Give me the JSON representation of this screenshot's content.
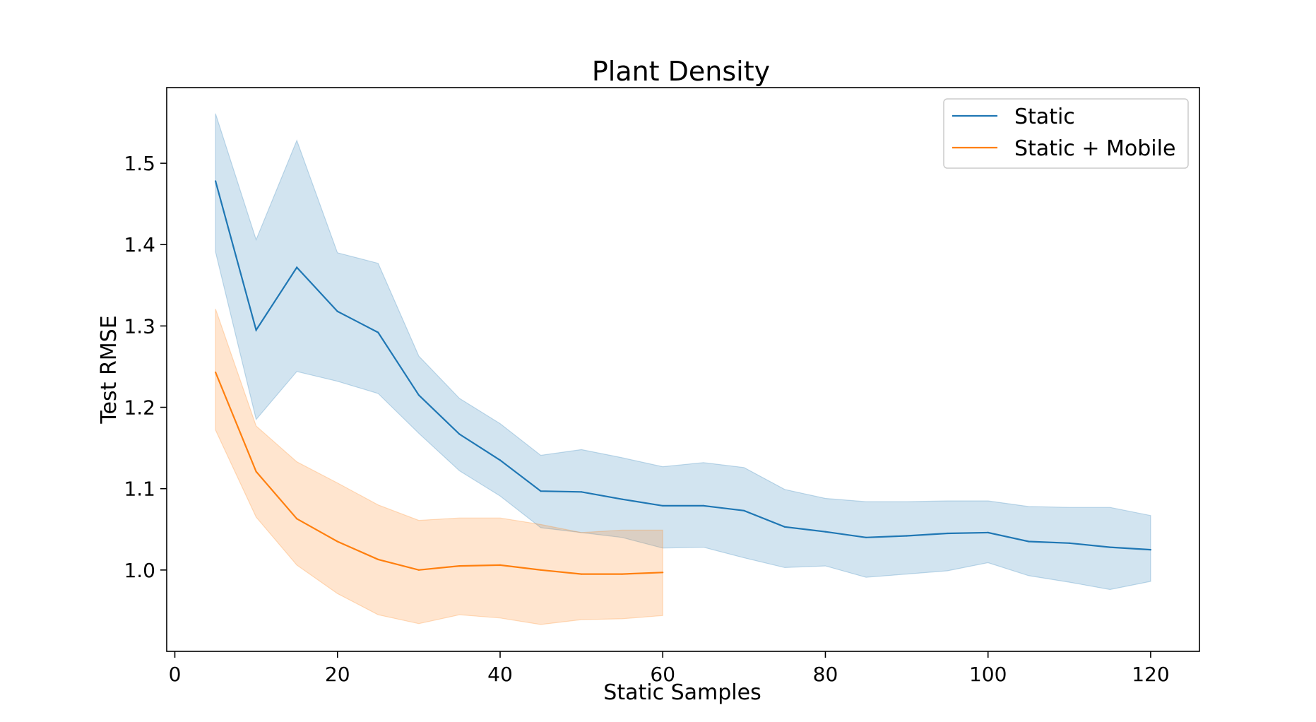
{
  "chart_data": {
    "type": "line",
    "title": "Plant Density",
    "xlabel": "Static Samples",
    "ylabel": "Test RMSE",
    "xlim": [
      -1,
      126
    ],
    "ylim": [
      0.9,
      1.593
    ],
    "xticks": [
      0,
      20,
      40,
      60,
      80,
      100,
      120
    ],
    "xtick_labels": [
      "0",
      "20",
      "40",
      "60",
      "80",
      "100",
      "120"
    ],
    "yticks": [
      1.0,
      1.1,
      1.2,
      1.3,
      1.4,
      1.5
    ],
    "ytick_labels": [
      "1.0",
      "1.1",
      "1.2",
      "1.3",
      "1.4",
      "1.5"
    ],
    "grid": false,
    "legend_position": "top-right",
    "series": [
      {
        "name": "Static",
        "color": "#1f77b4",
        "band_color": "#1f77b4",
        "x": [
          5,
          10,
          15,
          20,
          25,
          30,
          35,
          40,
          45,
          50,
          55,
          60,
          65,
          70,
          75,
          80,
          85,
          90,
          95,
          100,
          105,
          110,
          115,
          120
        ],
        "y": [
          1.478,
          1.295,
          1.372,
          1.318,
          1.292,
          1.215,
          1.167,
          1.135,
          1.097,
          1.096,
          1.087,
          1.079,
          1.079,
          1.073,
          1.053,
          1.047,
          1.04,
          1.042,
          1.045,
          1.046,
          1.035,
          1.033,
          1.028,
          1.025
        ],
        "lower": [
          1.391,
          1.185,
          1.244,
          1.232,
          1.217,
          1.168,
          1.122,
          1.091,
          1.052,
          1.046,
          1.04,
          1.027,
          1.028,
          1.015,
          1.003,
          1.005,
          0.991,
          0.995,
          0.999,
          1.009,
          0.993,
          0.985,
          0.976,
          0.986
        ],
        "upper": [
          1.561,
          1.406,
          1.528,
          1.39,
          1.377,
          1.263,
          1.211,
          1.18,
          1.141,
          1.148,
          1.138,
          1.127,
          1.132,
          1.126,
          1.099,
          1.088,
          1.084,
          1.084,
          1.085,
          1.085,
          1.078,
          1.077,
          1.077,
          1.067
        ]
      },
      {
        "name": "Static + Mobile",
        "color": "#ff7f0e",
        "band_color": "#ff7f0e",
        "x": [
          5,
          10,
          15,
          20,
          25,
          30,
          35,
          40,
          45,
          50,
          55,
          60
        ],
        "y": [
          1.243,
          1.121,
          1.063,
          1.035,
          1.013,
          1.0,
          1.005,
          1.006,
          1.0,
          0.995,
          0.995,
          0.997
        ],
        "lower": [
          1.172,
          1.065,
          1.006,
          0.971,
          0.945,
          0.934,
          0.945,
          0.941,
          0.933,
          0.939,
          0.94,
          0.944
        ],
        "upper": [
          1.321,
          1.177,
          1.133,
          1.107,
          1.08,
          1.061,
          1.064,
          1.064,
          1.056,
          1.046,
          1.049,
          1.049
        ]
      }
    ]
  }
}
